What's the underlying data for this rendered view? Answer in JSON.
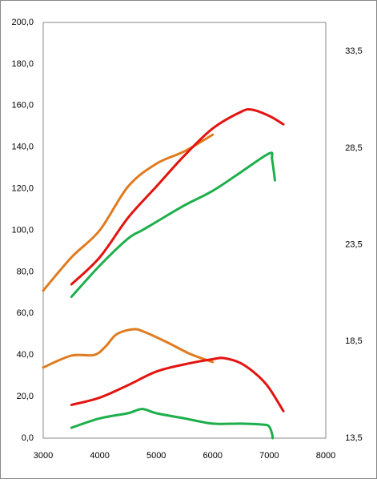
{
  "chart_data": {
    "type": "line",
    "xlim": [
      3000,
      8000
    ],
    "xticks": [
      3000,
      4000,
      5000,
      6000,
      7000,
      8000
    ],
    "ylim": [
      0,
      200
    ],
    "yticks": [
      {
        "value": 0,
        "label": "0,0"
      },
      {
        "value": 20,
        "label": "20,0"
      },
      {
        "value": 40,
        "label": "40,0"
      },
      {
        "value": 60,
        "label": "60,0"
      },
      {
        "value": 80,
        "label": "80,0"
      },
      {
        "value": 100,
        "label": "100,0"
      },
      {
        "value": 120,
        "label": "120,0"
      },
      {
        "value": 140,
        "label": "140,0"
      },
      {
        "value": 160,
        "label": "160,0"
      },
      {
        "value": 180,
        "label": "180,0"
      },
      {
        "value": 200,
        "label": "200,0"
      }
    ],
    "y2lim": [
      13.5,
      35.0
    ],
    "y2ticks": [
      {
        "value": 13.5,
        "label": "13,5"
      },
      {
        "value": 18.5,
        "label": "18,5"
      },
      {
        "value": 23.5,
        "label": "23,5"
      },
      {
        "value": 28.5,
        "label": "28,5"
      },
      {
        "value": 33.5,
        "label": "33,5"
      }
    ],
    "grid": true,
    "series": [
      {
        "color": "#e07b1f",
        "x": [
          3000,
          3500,
          4000,
          4500,
          5000,
          5500,
          6000
        ],
        "values": [
          71,
          87,
          100,
          121,
          132,
          138,
          146
        ]
      },
      {
        "color": "#e3140f",
        "x": [
          3500,
          4000,
          4500,
          5000,
          5500,
          6000,
          6500,
          6700,
          7000,
          7250
        ],
        "values": [
          74,
          87,
          106,
          121,
          136,
          149,
          157,
          158,
          155,
          151
        ]
      },
      {
        "color": "#1daf4b",
        "x": [
          3500,
          4000,
          4500,
          4750,
          5000,
          5500,
          6000,
          6500,
          7000,
          7050,
          7100
        ],
        "values": [
          68,
          83,
          96,
          100,
          104,
          112,
          119,
          128,
          137,
          134,
          124
        ]
      },
      {
        "color": "#e07b1f",
        "x": [
          3000,
          3500,
          3900,
          4100,
          4300,
          4600,
          4800,
          5200,
          5600,
          6000
        ],
        "values": [
          34,
          39.7,
          40,
          44,
          50,
          52.4,
          51,
          46,
          40.5,
          36.6
        ]
      },
      {
        "color": "#e3140f",
        "x": [
          3500,
          4000,
          4500,
          5000,
          5500,
          6000,
          6200,
          6500,
          6800,
          7000,
          7250
        ],
        "values": [
          16,
          19.5,
          25.5,
          32,
          35.5,
          38,
          38.5,
          36,
          30,
          24,
          13
        ]
      },
      {
        "color": "#1daf4b",
        "x": [
          3500,
          4000,
          4500,
          4750,
          5000,
          5500,
          6000,
          6500,
          6900,
          7000,
          7050,
          7060
        ],
        "values": [
          5,
          9.5,
          12,
          14,
          12,
          9.5,
          7,
          7,
          6.5,
          5.5,
          2,
          0
        ]
      }
    ]
  }
}
